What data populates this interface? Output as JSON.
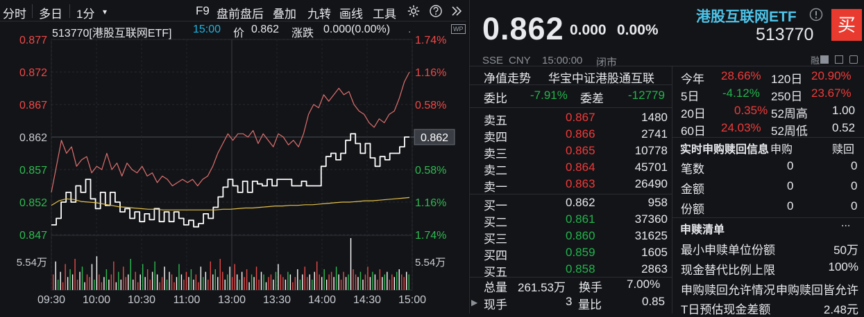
{
  "toolbar": {
    "items": [
      "分时",
      "多日",
      "1分",
      "F9",
      "盘前盘后",
      "叠加",
      "九转",
      "画线",
      "工具"
    ],
    "dropdown_glyph": "▾",
    "settings_icon": "gear-icon",
    "help_icon": "question-icon",
    "expand_icon": "double-chevron-right-icon"
  },
  "chart_header": {
    "code_name": "513770[港股互联网ETF]",
    "time": "15:00",
    "price_label": "价",
    "price": "0.862",
    "change_label": "涨跌",
    "change": "0.000(0.00%)",
    "corner_badge": "WP"
  },
  "chart_data": [
    {
      "type": "line",
      "name": "intraday-price",
      "x_ticks": [
        "09:30",
        "10:00",
        "10:30",
        "11:00",
        "13:00",
        "13:30",
        "14:00",
        "14:30",
        "15:00"
      ],
      "y_ticks_left": [
        "0.877",
        "0.872",
        "0.867",
        "0.862",
        "0.857",
        "0.852",
        "0.847"
      ],
      "y_ticks_right": [
        "1.74%",
        "1.16%",
        "0.58%",
        "",
        "0.58%",
        "1.16%",
        "1.74%"
      ],
      "ylim": [
        0.847,
        0.877
      ],
      "prev_close": 0.862,
      "current_price_tag": "0.862",
      "series": [
        {
          "name": "price",
          "color": "#ffffff",
          "values": [
            0.8485,
            0.8495,
            0.852,
            0.8535,
            0.852,
            0.8545,
            0.8535,
            0.8555,
            0.8525,
            0.851,
            0.8535,
            0.8515,
            0.8535,
            0.852,
            0.8505,
            0.851,
            0.8495,
            0.8505,
            0.849,
            0.8502,
            0.8493,
            0.851,
            0.849,
            0.8505,
            0.849,
            0.8505,
            0.8495,
            0.8485,
            0.8492,
            0.8482,
            0.8487,
            0.8502,
            0.8495,
            0.8512,
            0.8528,
            0.8543,
            0.8555,
            0.8545,
            0.8535,
            0.8552,
            0.8535,
            0.8552,
            0.8548,
            0.8545,
            0.8555,
            0.8545,
            0.8555,
            0.8555,
            0.8555,
            0.8545,
            0.8545,
            0.8552,
            0.8545,
            0.8545,
            0.8545,
            0.8575,
            0.859,
            0.8595,
            0.8585,
            0.8595,
            0.8615,
            0.8625,
            0.861,
            0.8595,
            0.861,
            0.8588,
            0.8575,
            0.859,
            0.8585,
            0.8595,
            0.8595,
            0.8605,
            0.862,
            0.862
          ]
        },
        {
          "name": "avg",
          "color": "#e6c34a",
          "values": [
            0.8515,
            0.8522,
            0.8525,
            0.8524,
            0.8521,
            0.852,
            0.8519,
            0.8517,
            0.8515,
            0.8513,
            0.8512,
            0.8511,
            0.851,
            0.8509,
            0.8509,
            0.8508,
            0.8508,
            0.8508,
            0.8508,
            0.8508,
            0.8508,
            0.8508,
            0.8508,
            0.8509,
            0.8509,
            0.851,
            0.8511,
            0.8511,
            0.8512,
            0.8513,
            0.8514,
            0.8514,
            0.8515,
            0.8515,
            0.8516,
            0.8516,
            0.8517,
            0.8518,
            0.8519,
            0.852,
            0.852,
            0.8521,
            0.8522,
            0.8522,
            0.8523,
            0.8524,
            0.8525,
            0.8526,
            0.8527
          ]
        },
        {
          "name": "reference",
          "color": "#e07070",
          "values": [
            0.8535,
            0.8575,
            0.8615,
            0.8595,
            0.8605,
            0.8575,
            0.8585,
            0.859,
            0.8565,
            0.8575,
            0.857,
            0.8595,
            0.857,
            0.858,
            0.856,
            0.858,
            0.857,
            0.8565,
            0.8575,
            0.856,
            0.8565,
            0.855,
            0.856,
            0.8555,
            0.8545,
            0.855,
            0.8555,
            0.855,
            0.8555,
            0.8545,
            0.8555,
            0.856,
            0.8575,
            0.8595,
            0.861,
            0.8625,
            0.8615,
            0.8625,
            0.8625,
            0.862,
            0.863,
            0.861,
            0.8625,
            0.8615,
            0.8605,
            0.8625,
            0.862,
            0.8608,
            0.8615,
            0.8605,
            0.8625,
            0.8655,
            0.867,
            0.8665,
            0.8685,
            0.8675,
            0.8685,
            0.8695,
            0.8685,
            0.869,
            0.867,
            0.866,
            0.8655,
            0.8642,
            0.8635,
            0.8648,
            0.8642,
            0.8655,
            0.866,
            0.868,
            0.8705,
            0.872
          ]
        }
      ]
    },
    {
      "type": "bar",
      "name": "volume",
      "y_tick_left": "5.54万",
      "y_tick_right": "5.54万",
      "values": [
        0.3,
        0.55,
        0.2,
        0.35,
        0.15,
        0.5,
        0.25,
        0.4,
        0.3,
        0.6,
        0.2,
        0.35,
        0.45,
        0.15,
        0.3,
        0.25,
        0.5,
        0.2,
        0.65,
        0.3,
        0.15,
        0.25,
        0.4,
        0.2,
        0.3,
        0.55,
        0.15,
        0.35,
        0.2,
        0.45,
        0.25,
        0.3,
        0.6,
        0.2,
        0.35,
        0.15,
        0.3,
        0.5,
        0.25,
        0.4,
        0.2,
        0.35,
        0.55,
        0.3,
        0.15,
        0.25,
        0.45,
        0.2,
        0.35,
        0.3,
        0.15,
        0.25,
        0.5,
        0.3,
        0.2,
        0.35,
        0.25,
        0.4,
        0.2,
        0.3,
        0.15,
        0.45,
        0.25,
        0.35,
        0.2,
        0.55,
        0.3,
        0.4,
        0.25,
        0.6,
        0.35,
        0.2,
        0.3,
        0.45,
        0.25,
        0.5,
        0.3,
        0.2,
        0.35,
        0.25,
        0.4,
        0.15,
        0.3,
        0.25,
        0.45,
        0.2,
        0.35,
        0.3,
        0.15,
        0.25,
        0.3,
        0.2,
        0.35,
        0.5,
        0.3,
        0.25,
        0.2,
        0.35,
        0.3,
        0.15,
        0.25,
        0.4,
        0.2,
        0.3,
        0.45,
        0.25,
        0.3,
        0.2,
        0.35,
        0.55,
        0.3,
        0.25,
        0.4,
        0.2,
        0.3,
        0.35,
        0.25,
        0.45,
        0.3,
        0.2,
        0.35,
        0.25,
        0.3,
        1.0,
        0.4,
        0.3,
        0.25,
        0.35,
        0.2,
        0.3,
        0.45,
        0.25,
        0.35,
        0.3,
        0.2,
        0.4,
        0.25,
        0.3,
        0.35,
        0.2,
        0.3,
        0.25,
        0.35,
        0.4,
        0.3,
        0.25,
        0.35,
        0.3
      ]
    }
  ],
  "quote": {
    "price": "0.862",
    "change": "0.000",
    "change_pct": "0.00%",
    "name": "港股互联网ETF",
    "code": "513770",
    "buy_button": "买",
    "meta": [
      "SSE",
      "CNY",
      "15:00:00",
      "闭市"
    ],
    "tag": "融",
    "info_icon": "info-icon"
  },
  "orderbook": {
    "tab_left": "净值走势",
    "tab_right": "华宝中证港股通互联",
    "weibi_label": "委比",
    "weibi_value": "-7.91%",
    "weicha_label": "委差",
    "weicha_value": "-12779",
    "asks": [
      {
        "label": "卖五",
        "price": "0.867",
        "qty": "1480"
      },
      {
        "label": "卖四",
        "price": "0.866",
        "qty": "2741"
      },
      {
        "label": "卖三",
        "price": "0.865",
        "qty": "10778"
      },
      {
        "label": "卖二",
        "price": "0.864",
        "qty": "45701"
      },
      {
        "label": "卖一",
        "price": "0.863",
        "qty": "26490"
      }
    ],
    "bids": [
      {
        "label": "买一",
        "price": "0.862",
        "qty": "958"
      },
      {
        "label": "买二",
        "price": "0.861",
        "qty": "37360"
      },
      {
        "label": "买三",
        "price": "0.860",
        "qty": "31625"
      },
      {
        "label": "买四",
        "price": "0.859",
        "qty": "1605"
      },
      {
        "label": "买五",
        "price": "0.858",
        "qty": "2863"
      }
    ],
    "total_label": "总量",
    "total_value": "261.53万",
    "turnover_label": "换手",
    "turnover_value": "7.00%",
    "hand_label": "现手",
    "hand_value": "3",
    "ratio_label": "量比",
    "ratio_value": "0.85"
  },
  "performance": [
    {
      "l1": "今年",
      "v1": "28.66%",
      "l2": "120日",
      "v2": "20.90%"
    },
    {
      "l1": "5日",
      "v1": "-4.12%",
      "l2": "250日",
      "v2": "23.67%"
    },
    {
      "l1": "20日",
      "v1": "0.35%",
      "l2": "52周高",
      "v2": "1.00"
    },
    {
      "l1": "60日",
      "v1": "24.03%",
      "l2": "52周低",
      "v2": "0.52"
    }
  ],
  "subscription": {
    "title": "实时申购赎回信息",
    "col1": "申购",
    "col2": "赎回",
    "rows": [
      {
        "label": "笔数",
        "sub": "0",
        "red": "0"
      },
      {
        "label": "金额",
        "sub": "0",
        "red": "0"
      },
      {
        "label": "份额",
        "sub": "0",
        "red": "0"
      }
    ]
  },
  "redemption_list": {
    "title": "申赎清单",
    "more": "...",
    "rows": [
      {
        "label": "最小申赎单位份额",
        "value": "50万"
      },
      {
        "label": "现金替代比例上限",
        "value": "100%"
      },
      {
        "label": "申购赎回允许情况",
        "value": "申购赎回皆允许"
      },
      {
        "label": "T日预估现金差额",
        "value": "2.48元"
      }
    ]
  }
}
